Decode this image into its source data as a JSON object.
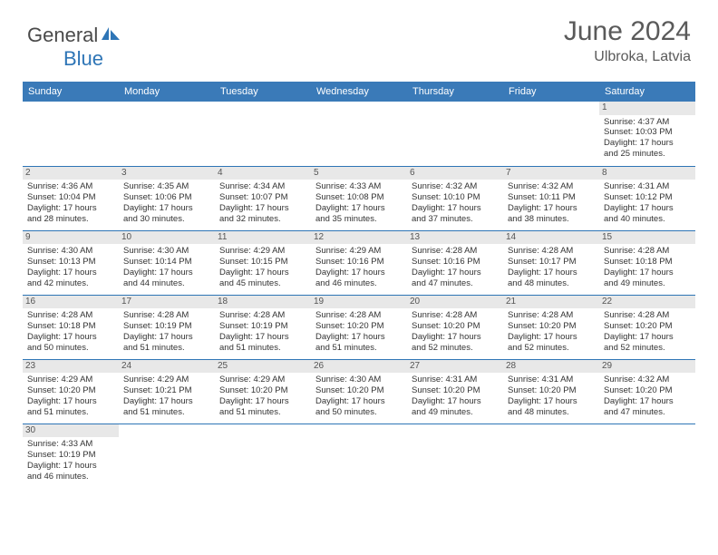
{
  "header": {
    "logo_general": "General",
    "logo_blue": "Blue",
    "month_title": "June 2024",
    "location": "Ulbroka, Latvia"
  },
  "colors": {
    "header_bg": "#3a7ab8",
    "header_text": "#ffffff",
    "daynum_bg": "#e8e8e8",
    "border": "#2e75b6",
    "text": "#333333"
  },
  "day_names": [
    "Sunday",
    "Monday",
    "Tuesday",
    "Wednesday",
    "Thursday",
    "Friday",
    "Saturday"
  ],
  "weeks": [
    [
      {
        "n": "",
        "sr": "",
        "ss": "",
        "d1": "",
        "d2": ""
      },
      {
        "n": "",
        "sr": "",
        "ss": "",
        "d1": "",
        "d2": ""
      },
      {
        "n": "",
        "sr": "",
        "ss": "",
        "d1": "",
        "d2": ""
      },
      {
        "n": "",
        "sr": "",
        "ss": "",
        "d1": "",
        "d2": ""
      },
      {
        "n": "",
        "sr": "",
        "ss": "",
        "d1": "",
        "d2": ""
      },
      {
        "n": "",
        "sr": "",
        "ss": "",
        "d1": "",
        "d2": ""
      },
      {
        "n": "1",
        "sr": "Sunrise: 4:37 AM",
        "ss": "Sunset: 10:03 PM",
        "d1": "Daylight: 17 hours",
        "d2": "and 25 minutes."
      }
    ],
    [
      {
        "n": "2",
        "sr": "Sunrise: 4:36 AM",
        "ss": "Sunset: 10:04 PM",
        "d1": "Daylight: 17 hours",
        "d2": "and 28 minutes."
      },
      {
        "n": "3",
        "sr": "Sunrise: 4:35 AM",
        "ss": "Sunset: 10:06 PM",
        "d1": "Daylight: 17 hours",
        "d2": "and 30 minutes."
      },
      {
        "n": "4",
        "sr": "Sunrise: 4:34 AM",
        "ss": "Sunset: 10:07 PM",
        "d1": "Daylight: 17 hours",
        "d2": "and 32 minutes."
      },
      {
        "n": "5",
        "sr": "Sunrise: 4:33 AM",
        "ss": "Sunset: 10:08 PM",
        "d1": "Daylight: 17 hours",
        "d2": "and 35 minutes."
      },
      {
        "n": "6",
        "sr": "Sunrise: 4:32 AM",
        "ss": "Sunset: 10:10 PM",
        "d1": "Daylight: 17 hours",
        "d2": "and 37 minutes."
      },
      {
        "n": "7",
        "sr": "Sunrise: 4:32 AM",
        "ss": "Sunset: 10:11 PM",
        "d1": "Daylight: 17 hours",
        "d2": "and 38 minutes."
      },
      {
        "n": "8",
        "sr": "Sunrise: 4:31 AM",
        "ss": "Sunset: 10:12 PM",
        "d1": "Daylight: 17 hours",
        "d2": "and 40 minutes."
      }
    ],
    [
      {
        "n": "9",
        "sr": "Sunrise: 4:30 AM",
        "ss": "Sunset: 10:13 PM",
        "d1": "Daylight: 17 hours",
        "d2": "and 42 minutes."
      },
      {
        "n": "10",
        "sr": "Sunrise: 4:30 AM",
        "ss": "Sunset: 10:14 PM",
        "d1": "Daylight: 17 hours",
        "d2": "and 44 minutes."
      },
      {
        "n": "11",
        "sr": "Sunrise: 4:29 AM",
        "ss": "Sunset: 10:15 PM",
        "d1": "Daylight: 17 hours",
        "d2": "and 45 minutes."
      },
      {
        "n": "12",
        "sr": "Sunrise: 4:29 AM",
        "ss": "Sunset: 10:16 PM",
        "d1": "Daylight: 17 hours",
        "d2": "and 46 minutes."
      },
      {
        "n": "13",
        "sr": "Sunrise: 4:28 AM",
        "ss": "Sunset: 10:16 PM",
        "d1": "Daylight: 17 hours",
        "d2": "and 47 minutes."
      },
      {
        "n": "14",
        "sr": "Sunrise: 4:28 AM",
        "ss": "Sunset: 10:17 PM",
        "d1": "Daylight: 17 hours",
        "d2": "and 48 minutes."
      },
      {
        "n": "15",
        "sr": "Sunrise: 4:28 AM",
        "ss": "Sunset: 10:18 PM",
        "d1": "Daylight: 17 hours",
        "d2": "and 49 minutes."
      }
    ],
    [
      {
        "n": "16",
        "sr": "Sunrise: 4:28 AM",
        "ss": "Sunset: 10:18 PM",
        "d1": "Daylight: 17 hours",
        "d2": "and 50 minutes."
      },
      {
        "n": "17",
        "sr": "Sunrise: 4:28 AM",
        "ss": "Sunset: 10:19 PM",
        "d1": "Daylight: 17 hours",
        "d2": "and 51 minutes."
      },
      {
        "n": "18",
        "sr": "Sunrise: 4:28 AM",
        "ss": "Sunset: 10:19 PM",
        "d1": "Daylight: 17 hours",
        "d2": "and 51 minutes."
      },
      {
        "n": "19",
        "sr": "Sunrise: 4:28 AM",
        "ss": "Sunset: 10:20 PM",
        "d1": "Daylight: 17 hours",
        "d2": "and 51 minutes."
      },
      {
        "n": "20",
        "sr": "Sunrise: 4:28 AM",
        "ss": "Sunset: 10:20 PM",
        "d1": "Daylight: 17 hours",
        "d2": "and 52 minutes."
      },
      {
        "n": "21",
        "sr": "Sunrise: 4:28 AM",
        "ss": "Sunset: 10:20 PM",
        "d1": "Daylight: 17 hours",
        "d2": "and 52 minutes."
      },
      {
        "n": "22",
        "sr": "Sunrise: 4:28 AM",
        "ss": "Sunset: 10:20 PM",
        "d1": "Daylight: 17 hours",
        "d2": "and 52 minutes."
      }
    ],
    [
      {
        "n": "23",
        "sr": "Sunrise: 4:29 AM",
        "ss": "Sunset: 10:20 PM",
        "d1": "Daylight: 17 hours",
        "d2": "and 51 minutes."
      },
      {
        "n": "24",
        "sr": "Sunrise: 4:29 AM",
        "ss": "Sunset: 10:21 PM",
        "d1": "Daylight: 17 hours",
        "d2": "and 51 minutes."
      },
      {
        "n": "25",
        "sr": "Sunrise: 4:29 AM",
        "ss": "Sunset: 10:20 PM",
        "d1": "Daylight: 17 hours",
        "d2": "and 51 minutes."
      },
      {
        "n": "26",
        "sr": "Sunrise: 4:30 AM",
        "ss": "Sunset: 10:20 PM",
        "d1": "Daylight: 17 hours",
        "d2": "and 50 minutes."
      },
      {
        "n": "27",
        "sr": "Sunrise: 4:31 AM",
        "ss": "Sunset: 10:20 PM",
        "d1": "Daylight: 17 hours",
        "d2": "and 49 minutes."
      },
      {
        "n": "28",
        "sr": "Sunrise: 4:31 AM",
        "ss": "Sunset: 10:20 PM",
        "d1": "Daylight: 17 hours",
        "d2": "and 48 minutes."
      },
      {
        "n": "29",
        "sr": "Sunrise: 4:32 AM",
        "ss": "Sunset: 10:20 PM",
        "d1": "Daylight: 17 hours",
        "d2": "and 47 minutes."
      }
    ],
    [
      {
        "n": "30",
        "sr": "Sunrise: 4:33 AM",
        "ss": "Sunset: 10:19 PM",
        "d1": "Daylight: 17 hours",
        "d2": "and 46 minutes."
      },
      {
        "n": "",
        "sr": "",
        "ss": "",
        "d1": "",
        "d2": ""
      },
      {
        "n": "",
        "sr": "",
        "ss": "",
        "d1": "",
        "d2": ""
      },
      {
        "n": "",
        "sr": "",
        "ss": "",
        "d1": "",
        "d2": ""
      },
      {
        "n": "",
        "sr": "",
        "ss": "",
        "d1": "",
        "d2": ""
      },
      {
        "n": "",
        "sr": "",
        "ss": "",
        "d1": "",
        "d2": ""
      },
      {
        "n": "",
        "sr": "",
        "ss": "",
        "d1": "",
        "d2": ""
      }
    ]
  ]
}
